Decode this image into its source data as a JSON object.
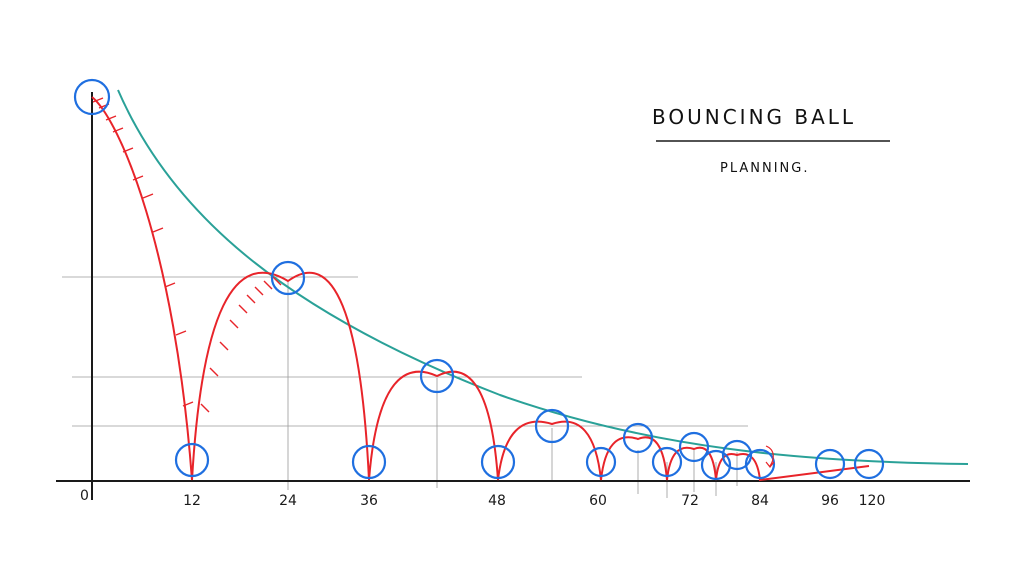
{
  "title": "BOUNCING BALL",
  "subtitle": "PLANNING.",
  "origin_label": "0",
  "colors": {
    "axis": "#1a1a1a",
    "guide": "#9a9a9a",
    "path": "#e8242a",
    "decay_curve": "#2aa198",
    "ball": "#1f6fe0"
  },
  "chart_data": {
    "type": "line",
    "x_tick_labels": [
      "12",
      "24",
      "36",
      "48",
      "60",
      "72",
      "84",
      "96",
      "120"
    ],
    "ball_path": {
      "contacts": [
        12,
        36,
        48,
        60,
        69,
        77,
        84
      ],
      "apex_frames": [
        24,
        42,
        54,
        65,
        73,
        80
      ]
    },
    "ball_drawings": [
      {
        "frame": 0,
        "phase": "start"
      },
      {
        "frame": 12,
        "phase": "contact"
      },
      {
        "frame": 24,
        "phase": "apex"
      },
      {
        "frame": 36,
        "phase": "contact"
      },
      {
        "frame": 42,
        "phase": "apex"
      },
      {
        "frame": 48,
        "phase": "contact"
      },
      {
        "frame": 54,
        "phase": "apex"
      },
      {
        "frame": 60,
        "phase": "contact"
      },
      {
        "frame": 65,
        "phase": "apex"
      },
      {
        "frame": 69,
        "phase": "contact"
      },
      {
        "frame": 73,
        "phase": "apex"
      },
      {
        "frame": 77,
        "phase": "contact"
      },
      {
        "frame": 80,
        "phase": "apex"
      },
      {
        "frame": 84,
        "phase": "contact"
      },
      {
        "frame": 96,
        "phase": "rest"
      },
      {
        "frame": 120,
        "phase": "rest"
      }
    ]
  }
}
